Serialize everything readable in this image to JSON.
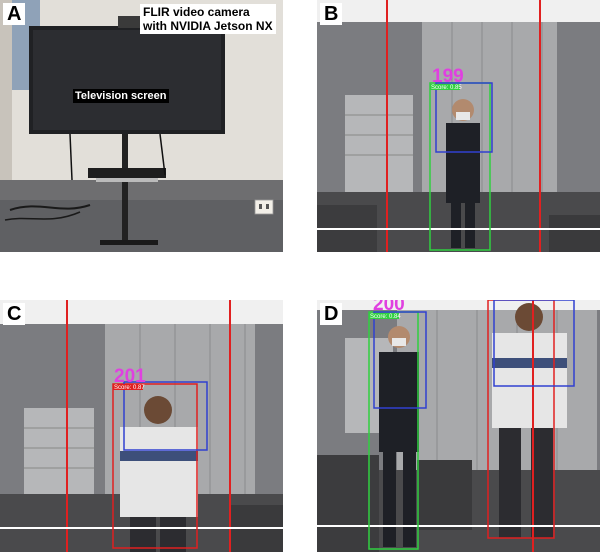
{
  "panels": [
    {
      "letter": "A",
      "callouts": {
        "camera_line1": "FLIR video camera",
        "camera_line2": "with NVIDIA Jetson NX",
        "tv": "Television screen"
      }
    },
    {
      "letter": "B",
      "track_ids": [
        "199"
      ],
      "scores": [
        "Score: 0.85"
      ]
    },
    {
      "letter": "C",
      "track_ids": [
        "201"
      ],
      "scores": [
        "Score: 0.87"
      ]
    },
    {
      "letter": "D",
      "track_ids": [
        "200"
      ],
      "scores": [
        "Score: 0.84"
      ]
    }
  ],
  "colors": {
    "red_line": "#e02020",
    "green_box": "#30d040",
    "blue_box": "#3040d0",
    "id_text": "#e040e0",
    "white_line": "#ffffff"
  }
}
